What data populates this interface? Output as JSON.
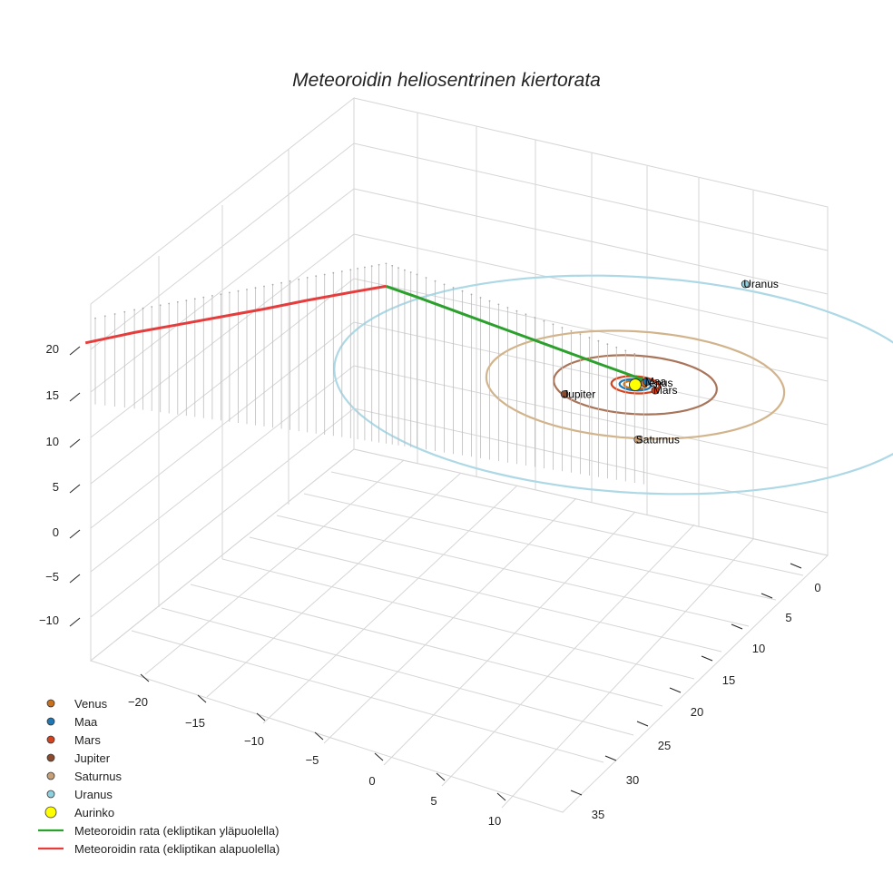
{
  "chart_data": {
    "type": "scatter",
    "title": "Meteoroidin heliosentrinen kiertorata",
    "x_ticks": [
      "−20",
      "−15",
      "−10",
      "−5",
      "0",
      "5",
      "10"
    ],
    "y_ticks": [
      "0",
      "5",
      "10",
      "15",
      "20",
      "25",
      "30",
      "35"
    ],
    "z_ticks": [
      "20",
      "15",
      "10",
      "5",
      "0",
      "−5",
      "−10"
    ],
    "grid": true,
    "legend_position": "bottom-left",
    "bodies": [
      {
        "name": "Venus",
        "label": "Venus",
        "color": "#c8711d",
        "x": 0.7,
        "y": -0.1,
        "z": 0
      },
      {
        "name": "Maa",
        "label": "Maa",
        "color": "#1f77b4",
        "x": 1.0,
        "y": 0.0,
        "z": 0
      },
      {
        "name": "Mars",
        "label": "Mars",
        "color": "#d3431e",
        "x": 0.4,
        "y": -1.45,
        "z": 0
      },
      {
        "name": "Jupiter",
        "label": "Jupiter",
        "color": "#8b4a2b",
        "x": -4.9,
        "y": 1.3,
        "z": 0
      },
      {
        "name": "Saturnus",
        "label": "Saturnus",
        "color": "#c8a078",
        "x": -6.4,
        "y": -7.3,
        "z": 0
      },
      {
        "name": "Uranus",
        "label": "Uranus",
        "color": "#8fd0e0",
        "x": 17.9,
        "y": 9.3,
        "z": 0
      },
      {
        "name": "Aurinko",
        "label": "",
        "color": "#ffff00",
        "x": 0,
        "y": 0,
        "z": 0
      }
    ],
    "orbits": [
      {
        "name": "Venus",
        "radius": 0.72,
        "color": "#c8711d"
      },
      {
        "name": "Maa",
        "radius": 1.0,
        "color": "#1f77b4"
      },
      {
        "name": "Mars",
        "radius": 1.52,
        "color": "#d3431e"
      },
      {
        "name": "Jupiter",
        "radius": 5.2,
        "color": "#a9755a"
      },
      {
        "name": "Saturnus",
        "radius": 9.5,
        "color": "#d2b48c"
      },
      {
        "name": "Uranus",
        "radius": 19.2,
        "color": "#add8e6"
      }
    ],
    "series": [
      {
        "name": "Meteoroidin rata (ekliptikan yläpuolella)",
        "color": "#2ca02c",
        "x": [
          1.0,
          -1.0,
          -3.0,
          -5.0,
          -7.0,
          -9.0,
          -10.4
        ],
        "y": [
          0.3,
          2.4,
          4.5,
          6.6,
          8.7,
          10.8,
          12.2
        ],
        "z": [
          0.05,
          1.5,
          3.0,
          4.5,
          6.0,
          7.5,
          8.5
        ]
      },
      {
        "name": "Meteoroidin rata (ekliptikan alapuolella)",
        "color": "#e63c3c",
        "x": [
          -10.4,
          -12.0,
          -14.0,
          -16.0,
          -18.0,
          -20.0,
          -22.0,
          -24.4
        ],
        "y": [
          12.2,
          13.8,
          15.7,
          17.6,
          19.5,
          21.4,
          23.3,
          25.3
        ],
        "z": [
          8.5,
          7.5,
          6.3,
          5.0,
          3.8,
          2.6,
          1.4,
          0.0
        ]
      }
    ],
    "legend": [
      {
        "label": "Venus",
        "kind": "marker",
        "color": "#c8711d"
      },
      {
        "label": "Maa",
        "kind": "marker",
        "color": "#1f77b4"
      },
      {
        "label": "Mars",
        "kind": "marker",
        "color": "#d3431e"
      },
      {
        "label": "Jupiter",
        "kind": "marker",
        "color": "#8b4a2b"
      },
      {
        "label": "Saturnus",
        "kind": "marker",
        "color": "#c8a078"
      },
      {
        "label": "Uranus",
        "kind": "marker",
        "color": "#8fd0e0"
      },
      {
        "label": "Aurinko",
        "kind": "big-marker",
        "color": "#ffff00"
      },
      {
        "label": "Meteoroidin rata (ekliptikan yläpuolella)",
        "kind": "line",
        "color": "#2ca02c"
      },
      {
        "label": "Meteoroidin rata (ekliptikan alapuolella)",
        "kind": "line",
        "color": "#e63c3c"
      }
    ]
  }
}
